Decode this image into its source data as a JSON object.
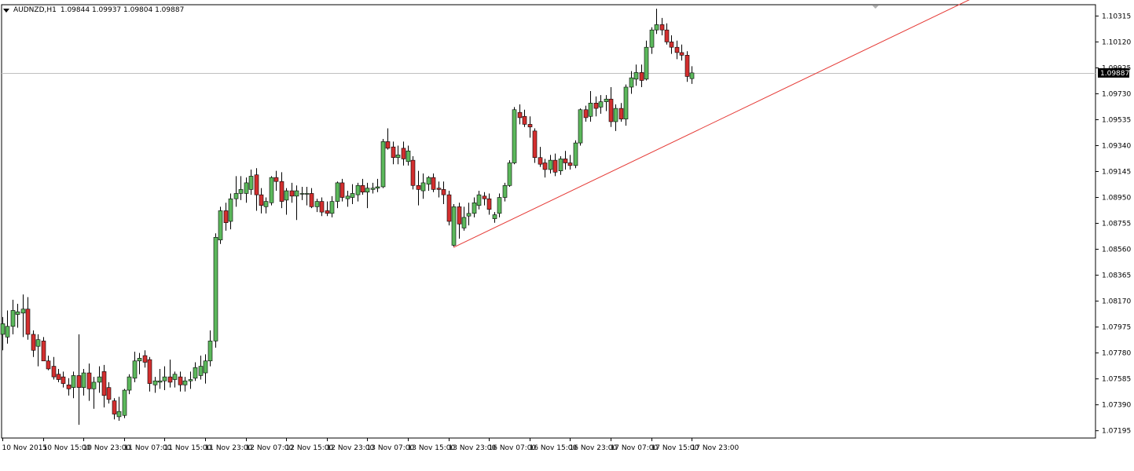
{
  "header": {
    "symbol": "AUDNZD,H1",
    "ohlc": "1.09844 1.09937 1.09804 1.09887"
  },
  "price_label": "1.09887",
  "colors": {
    "bull": "#5cb85c",
    "bear": "#d32f2f",
    "wick": "#000000",
    "trendline": "#e53935",
    "grid_hline": "#c0c0c0",
    "background": "#ffffff",
    "price_tag_bg": "#000000",
    "price_tag_text": "#ffffff"
  },
  "chart_data": {
    "type": "candlestick",
    "title": "AUDNZD,H1",
    "ylim": [
      1.0714,
      1.104
    ],
    "y_ticks": [
      "1.10315",
      "1.10120",
      "1.09925",
      "1.09730",
      "1.09535",
      "1.09340",
      "1.09145",
      "1.08950",
      "1.08755",
      "1.08560",
      "1.08365",
      "1.08170",
      "1.07975",
      "1.07780",
      "1.07585",
      "1.07390",
      "1.07195"
    ],
    "x_ticks": [
      "10 Nov 2015",
      "10 Nov 15:00",
      "10 Nov 23:00",
      "11 Nov 07:00",
      "11 Nov 15:00",
      "11 Nov 23:00",
      "12 Nov 07:00",
      "12 Nov 15:00",
      "12 Nov 23:00",
      "13 Nov 07:00",
      "13 Nov 15:00",
      "13 Nov 23:00",
      "16 Nov 07:00",
      "16 Nov 15:00",
      "16 Nov 23:00",
      "17 Nov 07:00",
      "17 Nov 15:00",
      "17 Nov 23:00"
    ],
    "last_price": 1.09887,
    "grid": false,
    "candles": [
      {
        "o": 1.0792,
        "h": 1.0805,
        "l": 1.078,
        "c": 1.08
      },
      {
        "o": 1.079,
        "h": 1.081,
        "l": 1.0785,
        "c": 1.0798
      },
      {
        "o": 1.0798,
        "h": 1.0818,
        "l": 1.0792,
        "c": 1.081
      },
      {
        "o": 1.0807,
        "h": 1.0815,
        "l": 1.0797,
        "c": 1.0809
      },
      {
        "o": 1.0808,
        "h": 1.0822,
        "l": 1.079,
        "c": 1.0811
      },
      {
        "o": 1.0811,
        "h": 1.082,
        "l": 1.0788,
        "c": 1.0792
      },
      {
        "o": 1.0792,
        "h": 1.0795,
        "l": 1.0775,
        "c": 1.078
      },
      {
        "o": 1.0783,
        "h": 1.0792,
        "l": 1.0768,
        "c": 1.0788
      },
      {
        "o": 1.0787,
        "h": 1.079,
        "l": 1.0772,
        "c": 1.0772
      },
      {
        "o": 1.0772,
        "h": 1.0776,
        "l": 1.0765,
        "c": 1.0766
      },
      {
        "o": 1.0768,
        "h": 1.0775,
        "l": 1.0758,
        "c": 1.076
      },
      {
        "o": 1.0762,
        "h": 1.0766,
        "l": 1.0756,
        "c": 1.0758
      },
      {
        "o": 1.076,
        "h": 1.0764,
        "l": 1.0752,
        "c": 1.0755
      },
      {
        "o": 1.0754,
        "h": 1.0759,
        "l": 1.0746,
        "c": 1.0751
      },
      {
        "o": 1.0752,
        "h": 1.0764,
        "l": 1.0744,
        "c": 1.0761
      },
      {
        "o": 1.0761,
        "h": 1.0792,
        "l": 1.0724,
        "c": 1.0752
      },
      {
        "o": 1.0752,
        "h": 1.0766,
        "l": 1.0746,
        "c": 1.0763
      },
      {
        "o": 1.0763,
        "h": 1.077,
        "l": 1.0742,
        "c": 1.0751
      },
      {
        "o": 1.0751,
        "h": 1.076,
        "l": 1.0736,
        "c": 1.0756
      },
      {
        "o": 1.0756,
        "h": 1.0768,
        "l": 1.0748,
        "c": 1.076
      },
      {
        "o": 1.0764,
        "h": 1.0769,
        "l": 1.0737,
        "c": 1.0746
      },
      {
        "o": 1.0752,
        "h": 1.0756,
        "l": 1.074,
        "c": 1.0743
      },
      {
        "o": 1.0742,
        "h": 1.0744,
        "l": 1.0728,
        "c": 1.0732
      },
      {
        "o": 1.073,
        "h": 1.0745,
        "l": 1.0727,
        "c": 1.0734
      },
      {
        "o": 1.0731,
        "h": 1.0751,
        "l": 1.0729,
        "c": 1.075
      },
      {
        "o": 1.075,
        "h": 1.0762,
        "l": 1.0747,
        "c": 1.076
      },
      {
        "o": 1.0759,
        "h": 1.0779,
        "l": 1.0756,
        "c": 1.0772
      },
      {
        "o": 1.0772,
        "h": 1.0778,
        "l": 1.0762,
        "c": 1.0774
      },
      {
        "o": 1.0776,
        "h": 1.078,
        "l": 1.0767,
        "c": 1.0771
      },
      {
        "o": 1.0773,
        "h": 1.0775,
        "l": 1.0749,
        "c": 1.0755
      },
      {
        "o": 1.0754,
        "h": 1.076,
        "l": 1.0748,
        "c": 1.0757
      },
      {
        "o": 1.0756,
        "h": 1.0766,
        "l": 1.0751,
        "c": 1.0757
      },
      {
        "o": 1.0757,
        "h": 1.0768,
        "l": 1.075,
        "c": 1.076
      },
      {
        "o": 1.076,
        "h": 1.0773,
        "l": 1.0752,
        "c": 1.0756
      },
      {
        "o": 1.0758,
        "h": 1.0764,
        "l": 1.0752,
        "c": 1.0762
      },
      {
        "o": 1.076,
        "h": 1.0764,
        "l": 1.0749,
        "c": 1.0754
      },
      {
        "o": 1.0754,
        "h": 1.076,
        "l": 1.0749,
        "c": 1.0757
      },
      {
        "o": 1.0757,
        "h": 1.0764,
        "l": 1.0751,
        "c": 1.0758
      },
      {
        "o": 1.0759,
        "h": 1.0771,
        "l": 1.0757,
        "c": 1.0767
      },
      {
        "o": 1.0761,
        "h": 1.0776,
        "l": 1.0758,
        "c": 1.0768
      },
      {
        "o": 1.0763,
        "h": 1.0777,
        "l": 1.0755,
        "c": 1.0772
      },
      {
        "o": 1.0772,
        "h": 1.0795,
        "l": 1.0768,
        "c": 1.0787
      },
      {
        "o": 1.0787,
        "h": 1.0868,
        "l": 1.0782,
        "c": 1.0865
      },
      {
        "o": 1.0863,
        "h": 1.0888,
        "l": 1.086,
        "c": 1.0885
      },
      {
        "o": 1.0885,
        "h": 1.0891,
        "l": 1.087,
        "c": 1.0876
      },
      {
        "o": 1.0877,
        "h": 1.0898,
        "l": 1.0871,
        "c": 1.0894
      },
      {
        "o": 1.0894,
        "h": 1.0911,
        "l": 1.0888,
        "c": 1.0898
      },
      {
        "o": 1.0898,
        "h": 1.0911,
        "l": 1.0893,
        "c": 1.0901
      },
      {
        "o": 1.0898,
        "h": 1.091,
        "l": 1.0891,
        "c": 1.0906
      },
      {
        "o": 1.0901,
        "h": 1.0916,
        "l": 1.0897,
        "c": 1.0911
      },
      {
        "o": 1.0912,
        "h": 1.0917,
        "l": 1.0885,
        "c": 1.0897
      },
      {
        "o": 1.0897,
        "h": 1.0902,
        "l": 1.0883,
        "c": 1.0889
      },
      {
        "o": 1.0888,
        "h": 1.0895,
        "l": 1.0883,
        "c": 1.0892
      },
      {
        "o": 1.0891,
        "h": 1.0911,
        "l": 1.0889,
        "c": 1.091
      },
      {
        "o": 1.091,
        "h": 1.0915,
        "l": 1.09,
        "c": 1.0907
      },
      {
        "o": 1.0907,
        "h": 1.0914,
        "l": 1.0887,
        "c": 1.0892
      },
      {
        "o": 1.0893,
        "h": 1.0902,
        "l": 1.0882,
        "c": 1.09
      },
      {
        "o": 1.09,
        "h": 1.0906,
        "l": 1.0891,
        "c": 1.0896
      },
      {
        "o": 1.0896,
        "h": 1.0904,
        "l": 1.0878,
        "c": 1.09
      },
      {
        "o": 1.0898,
        "h": 1.0903,
        "l": 1.0893,
        "c": 1.0898
      },
      {
        "o": 1.0898,
        "h": 1.0903,
        "l": 1.0889,
        "c": 1.0898
      },
      {
        "o": 1.0898,
        "h": 1.0902,
        "l": 1.0887,
        "c": 1.0888
      },
      {
        "o": 1.0888,
        "h": 1.0894,
        "l": 1.0884,
        "c": 1.0892
      },
      {
        "o": 1.0892,
        "h": 1.0895,
        "l": 1.0881,
        "c": 1.0884
      },
      {
        "o": 1.0885,
        "h": 1.0892,
        "l": 1.0881,
        "c": 1.0883
      },
      {
        "o": 1.0883,
        "h": 1.0896,
        "l": 1.088,
        "c": 1.0892
      },
      {
        "o": 1.0892,
        "h": 1.0907,
        "l": 1.0887,
        "c": 1.0906
      },
      {
        "o": 1.0906,
        "h": 1.0909,
        "l": 1.0892,
        "c": 1.0895
      },
      {
        "o": 1.0894,
        "h": 1.09,
        "l": 1.0888,
        "c": 1.0896
      },
      {
        "o": 1.0895,
        "h": 1.0905,
        "l": 1.089,
        "c": 1.0898
      },
      {
        "o": 1.0897,
        "h": 1.0906,
        "l": 1.0892,
        "c": 1.0904
      },
      {
        "o": 1.0904,
        "h": 1.0909,
        "l": 1.0897,
        "c": 1.0899
      },
      {
        "o": 1.0899,
        "h": 1.0906,
        "l": 1.0887,
        "c": 1.0902
      },
      {
        "o": 1.0901,
        "h": 1.0906,
        "l": 1.0898,
        "c": 1.0902
      },
      {
        "o": 1.0902,
        "h": 1.0909,
        "l": 1.0899,
        "c": 1.0903
      },
      {
        "o": 1.0903,
        "h": 1.0939,
        "l": 1.0902,
        "c": 1.0937
      },
      {
        "o": 1.0937,
        "h": 1.0947,
        "l": 1.0931,
        "c": 1.0932
      },
      {
        "o": 1.0933,
        "h": 1.0937,
        "l": 1.092,
        "c": 1.0925
      },
      {
        "o": 1.0925,
        "h": 1.0934,
        "l": 1.092,
        "c": 1.0927
      },
      {
        "o": 1.0932,
        "h": 1.0937,
        "l": 1.0919,
        "c": 1.0924
      },
      {
        "o": 1.0922,
        "h": 1.0934,
        "l": 1.0919,
        "c": 1.093
      },
      {
        "o": 1.0923,
        "h": 1.0926,
        "l": 1.0901,
        "c": 1.0904
      },
      {
        "o": 1.0904,
        "h": 1.0915,
        "l": 1.0889,
        "c": 1.0901
      },
      {
        "o": 1.09,
        "h": 1.0913,
        "l": 1.0894,
        "c": 1.0906
      },
      {
        "o": 1.0905,
        "h": 1.0911,
        "l": 1.09,
        "c": 1.091
      },
      {
        "o": 1.091,
        "h": 1.0913,
        "l": 1.0899,
        "c": 1.0901
      },
      {
        "o": 1.0902,
        "h": 1.0907,
        "l": 1.0895,
        "c": 1.0901
      },
      {
        "o": 1.0901,
        "h": 1.0907,
        "l": 1.089,
        "c": 1.0897
      },
      {
        "o": 1.0897,
        "h": 1.09,
        "l": 1.0874,
        "c": 1.0877
      },
      {
        "o": 1.0859,
        "h": 1.089,
        "l": 1.0858,
        "c": 1.0888
      },
      {
        "o": 1.0888,
        "h": 1.0891,
        "l": 1.0864,
        "c": 1.0875
      },
      {
        "o": 1.0872,
        "h": 1.0888,
        "l": 1.087,
        "c": 1.088
      },
      {
        "o": 1.0881,
        "h": 1.0891,
        "l": 1.0874,
        "c": 1.0883
      },
      {
        "o": 1.0883,
        "h": 1.0895,
        "l": 1.088,
        "c": 1.0891
      },
      {
        "o": 1.0889,
        "h": 1.09,
        "l": 1.0886,
        "c": 1.0897
      },
      {
        "o": 1.0896,
        "h": 1.0899,
        "l": 1.0889,
        "c": 1.0894
      },
      {
        "o": 1.0894,
        "h": 1.0898,
        "l": 1.0882,
        "c": 1.0886
      },
      {
        "o": 1.0879,
        "h": 1.0884,
        "l": 1.0876,
        "c": 1.0882
      },
      {
        "o": 1.0883,
        "h": 1.0898,
        "l": 1.088,
        "c": 1.0895
      },
      {
        "o": 1.0895,
        "h": 1.0906,
        "l": 1.0892,
        "c": 1.0904
      },
      {
        "o": 1.0904,
        "h": 1.0923,
        "l": 1.0903,
        "c": 1.0921
      },
      {
        "o": 1.0921,
        "h": 1.0963,
        "l": 1.092,
        "c": 1.0961
      },
      {
        "o": 1.0959,
        "h": 1.0965,
        "l": 1.095,
        "c": 1.0955
      },
      {
        "o": 1.0956,
        "h": 1.0961,
        "l": 1.0948,
        "c": 1.095
      },
      {
        "o": 1.095,
        "h": 1.0956,
        "l": 1.094,
        "c": 1.0948
      },
      {
        "o": 1.0945,
        "h": 1.0947,
        "l": 1.0921,
        "c": 1.0925
      },
      {
        "o": 1.0925,
        "h": 1.0933,
        "l": 1.0918,
        "c": 1.092
      },
      {
        "o": 1.0921,
        "h": 1.0924,
        "l": 1.091,
        "c": 1.0916
      },
      {
        "o": 1.0916,
        "h": 1.0927,
        "l": 1.0913,
        "c": 1.0923
      },
      {
        "o": 1.0923,
        "h": 1.0928,
        "l": 1.0911,
        "c": 1.0914
      },
      {
        "o": 1.0915,
        "h": 1.0926,
        "l": 1.0912,
        "c": 1.0924
      },
      {
        "o": 1.0924,
        "h": 1.093,
        "l": 1.0916,
        "c": 1.0921
      },
      {
        "o": 1.0921,
        "h": 1.0927,
        "l": 1.0916,
        "c": 1.0919
      },
      {
        "o": 1.0919,
        "h": 1.0938,
        "l": 1.0917,
        "c": 1.0936
      },
      {
        "o": 1.0936,
        "h": 1.0962,
        "l": 1.0934,
        "c": 1.0961
      },
      {
        "o": 1.0961,
        "h": 1.0964,
        "l": 1.0952,
        "c": 1.0955
      },
      {
        "o": 1.0956,
        "h": 1.0975,
        "l": 1.0952,
        "c": 1.0966
      },
      {
        "o": 1.0966,
        "h": 1.0971,
        "l": 1.0956,
        "c": 1.0962
      },
      {
        "o": 1.0963,
        "h": 1.0972,
        "l": 1.0958,
        "c": 1.0967
      },
      {
        "o": 1.0967,
        "h": 1.0972,
        "l": 1.096,
        "c": 1.0969
      },
      {
        "o": 1.0969,
        "h": 1.0978,
        "l": 1.0948,
        "c": 1.0952
      },
      {
        "o": 1.0952,
        "h": 1.0965,
        "l": 1.0945,
        "c": 1.0962
      },
      {
        "o": 1.0962,
        "h": 1.0966,
        "l": 1.0952,
        "c": 1.0954
      },
      {
        "o": 1.0954,
        "h": 1.098,
        "l": 1.0949,
        "c": 1.0978
      },
      {
        "o": 1.0978,
        "h": 1.099,
        "l": 1.0973,
        "c": 1.0985
      },
      {
        "o": 1.0984,
        "h": 1.0995,
        "l": 1.0979,
        "c": 1.0989
      },
      {
        "o": 1.0989,
        "h": 1.0995,
        "l": 1.0978,
        "c": 1.0983
      },
      {
        "o": 1.0984,
        "h": 1.1013,
        "l": 1.0983,
        "c": 1.1008
      },
      {
        "o": 1.1008,
        "h": 1.1023,
        "l": 1.1003,
        "c": 1.1021
      },
      {
        "o": 1.1021,
        "h": 1.1037,
        "l": 1.1018,
        "c": 1.1025
      },
      {
        "o": 1.1025,
        "h": 1.103,
        "l": 1.1017,
        "c": 1.1021
      },
      {
        "o": 1.1021,
        "h": 1.1026,
        "l": 1.101,
        "c": 1.1012
      },
      {
        "o": 1.1012,
        "h": 1.1017,
        "l": 1.1003,
        "c": 1.1008
      },
      {
        "o": 1.1008,
        "h": 1.1013,
        "l": 1.0999,
        "c": 1.1004
      },
      {
        "o": 1.1004,
        "h": 1.101,
        "l": 1.0998,
        "c": 1.1002
      },
      {
        "o": 1.1002,
        "h": 1.1005,
        "l": 1.0982,
        "c": 1.0986
      },
      {
        "o": 1.09844,
        "h": 1.09937,
        "l": 1.09804,
        "c": 1.09887
      }
    ],
    "trendline": {
      "from_index": 89,
      "from_price": 1.08574,
      "to_index": 196,
      "to_price": 1.10533
    }
  }
}
